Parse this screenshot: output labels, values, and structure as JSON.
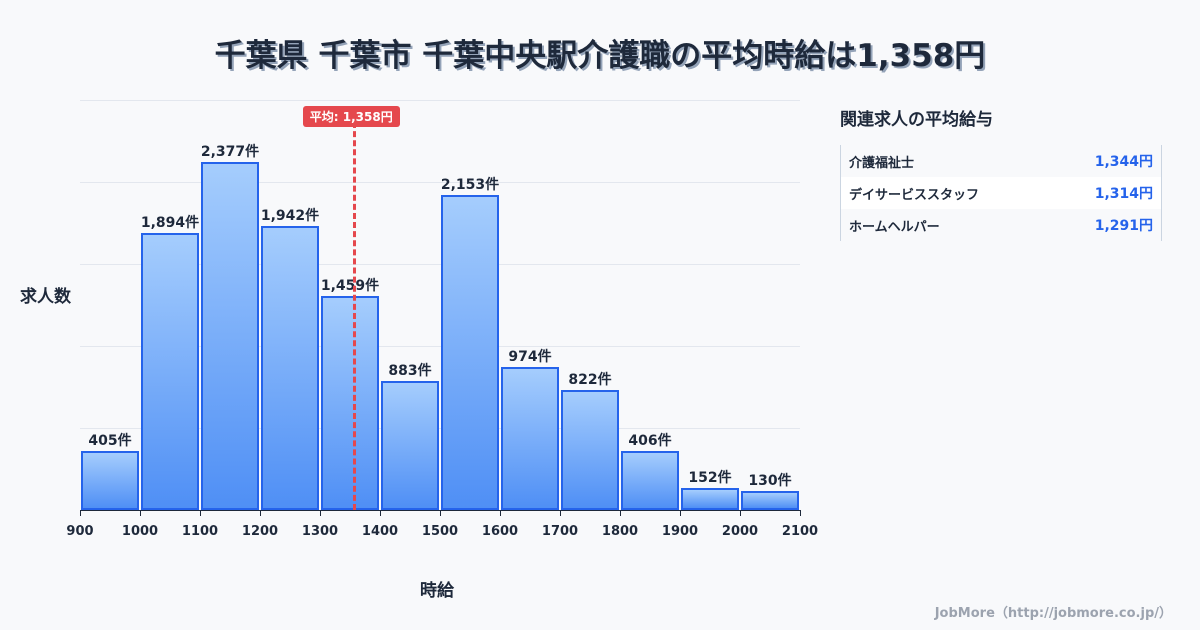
{
  "title": "千葉県 千葉市 千葉中央駅介護職の平均時給は1,358円",
  "axis": {
    "ylabel": "求人数",
    "xlabel": "時給",
    "ticks": [
      "900",
      "1000",
      "1100",
      "1200",
      "1300",
      "1400",
      "1500",
      "1600",
      "1700",
      "1800",
      "1900",
      "2000",
      "2100"
    ]
  },
  "average": {
    "label": "平均: 1,358円",
    "value": 1358
  },
  "bars": [
    {
      "label": "405件",
      "value": 405
    },
    {
      "label": "1,894件",
      "value": 1894
    },
    {
      "label": "2,377件",
      "value": 2377
    },
    {
      "label": "1,942件",
      "value": 1942
    },
    {
      "label": "1,459件",
      "value": 1459
    },
    {
      "label": "883件",
      "value": 883
    },
    {
      "label": "2,153件",
      "value": 2153
    },
    {
      "label": "974件",
      "value": 974
    },
    {
      "label": "822件",
      "value": 822
    },
    {
      "label": "406件",
      "value": 406
    },
    {
      "label": "152件",
      "value": 152
    },
    {
      "label": "130件",
      "value": 130
    }
  ],
  "side": {
    "title": "関連求人の平均給与",
    "rows": [
      {
        "name": "介護福祉士",
        "value": "1,344円"
      },
      {
        "name": "デイサービススタッフ",
        "value": "1,314円"
      },
      {
        "name": "ホームヘルパー",
        "value": "1,291円"
      }
    ]
  },
  "footer": "JobMore（http://jobmore.co.jp/）",
  "colors": {
    "bar_border": "#2563eb",
    "bar_top": "#a5cdfd",
    "bar_bottom": "#4f8ff5",
    "average": "#e5484d",
    "side_value": "#2563eb"
  },
  "chart_data": {
    "type": "bar",
    "title": "千葉県 千葉市 千葉中央駅介護職の平均時給は1,358円",
    "xlabel": "時給",
    "ylabel": "求人数",
    "categories": [
      "900-1000",
      "1000-1100",
      "1100-1200",
      "1200-1300",
      "1300-1400",
      "1400-1500",
      "1500-1600",
      "1600-1700",
      "1700-1800",
      "1800-1900",
      "1900-2000",
      "2000-2100"
    ],
    "values": [
      405,
      1894,
      2377,
      1942,
      1459,
      883,
      2153,
      974,
      822,
      406,
      152,
      130
    ],
    "x_ticks": [
      900,
      1000,
      1100,
      1200,
      1300,
      1400,
      1500,
      1600,
      1700,
      1800,
      1900,
      2000,
      2100
    ],
    "annotations": [
      {
        "type": "vline",
        "x": 1358,
        "label": "平均: 1,358円"
      }
    ],
    "ylim": [
      0,
      2800
    ],
    "grid": true,
    "legend": null
  }
}
